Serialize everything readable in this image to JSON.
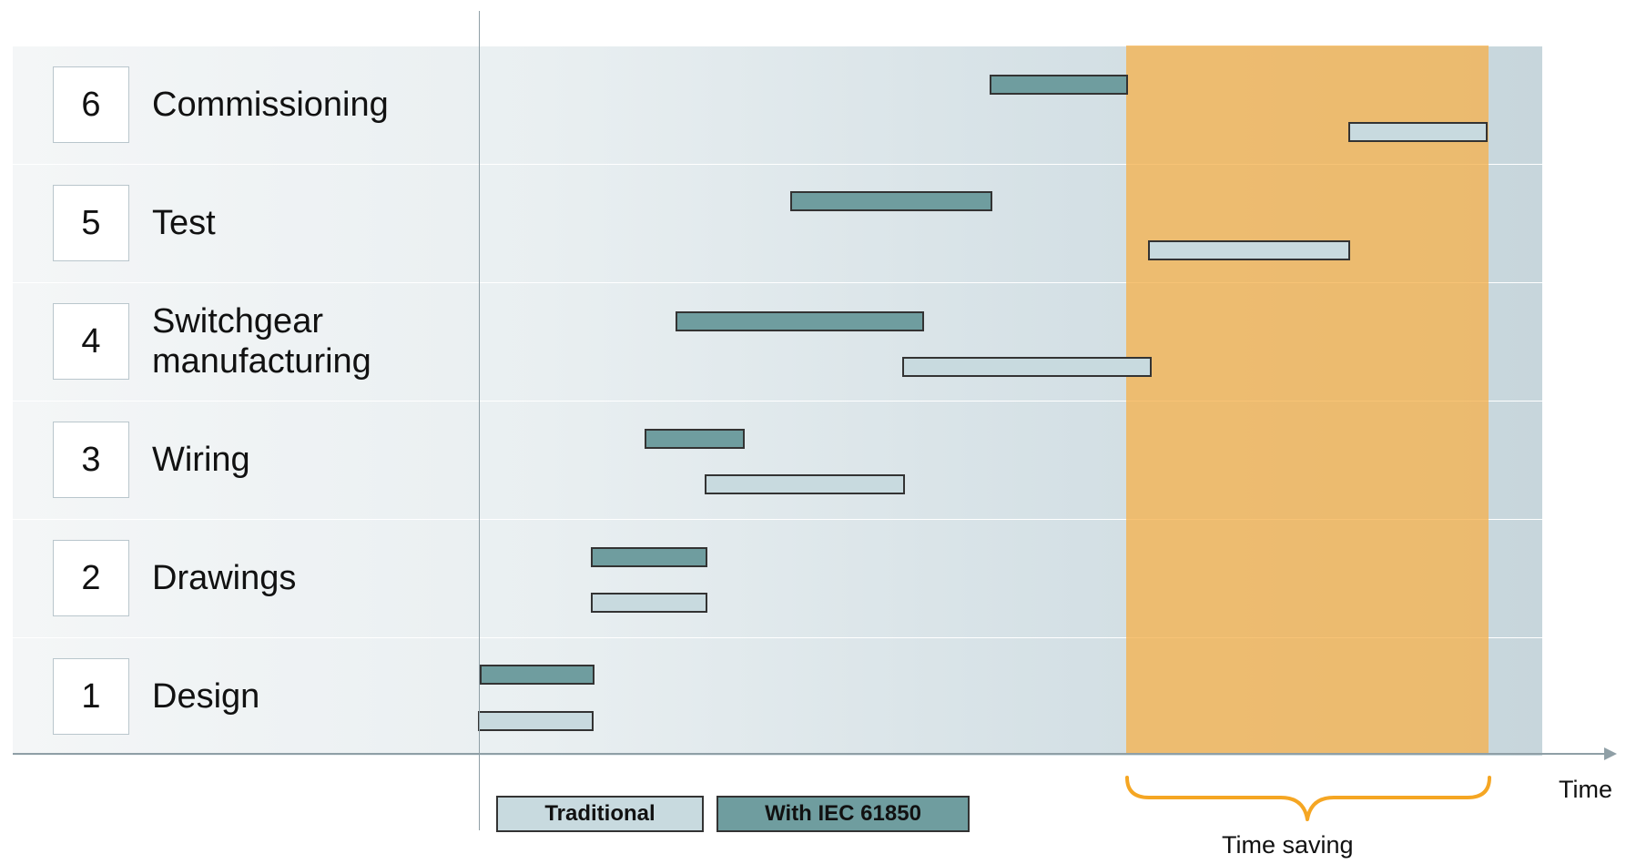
{
  "phases": [
    {
      "num": "6",
      "label": "Commissioning"
    },
    {
      "num": "5",
      "label": "Test"
    },
    {
      "num": "4",
      "label": "Switchgear\nmanufacturing"
    },
    {
      "num": "3",
      "label": "Wiring"
    },
    {
      "num": "2",
      "label": "Drawings"
    },
    {
      "num": "1",
      "label": "Design"
    }
  ],
  "legend": {
    "traditional": "Traditional",
    "iec": "With IEC 61850"
  },
  "axis": {
    "time_label": "Time"
  },
  "annotation": {
    "time_saving": "Time saving"
  },
  "colors": {
    "iec_bar": "#6f9d9f",
    "traditional_bar": "#c8dadf",
    "time_saving_band": "#f5b250"
  }
}
